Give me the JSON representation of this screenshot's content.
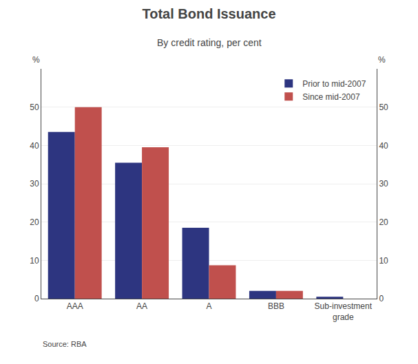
{
  "chart_data": {
    "type": "bar",
    "title": "Total Bond Issuance",
    "subtitle": "By credit rating, per cent",
    "source": "Source: RBA",
    "ylabel": "%",
    "y2label": "%",
    "categories": [
      "AAA",
      "AA",
      "A",
      "BBB",
      "Sub-investment\ngrade"
    ],
    "series": [
      {
        "name": "Prior to mid-2007",
        "color": "#2d3580",
        "values": [
          43.5,
          35.5,
          18.5,
          2.0,
          0.5
        ]
      },
      {
        "name": "Since mid-2007",
        "color": "#c0504d",
        "values": [
          50.0,
          39.5,
          8.7,
          2.0,
          0.0
        ]
      }
    ],
    "ylim": [
      0,
      60
    ],
    "yticks": [
      0,
      10,
      20,
      30,
      40,
      50
    ],
    "y2lim": [
      0,
      60
    ],
    "y2ticks": [
      0,
      10,
      20,
      30,
      40,
      50
    ],
    "grid": true,
    "legend": "upper right"
  }
}
